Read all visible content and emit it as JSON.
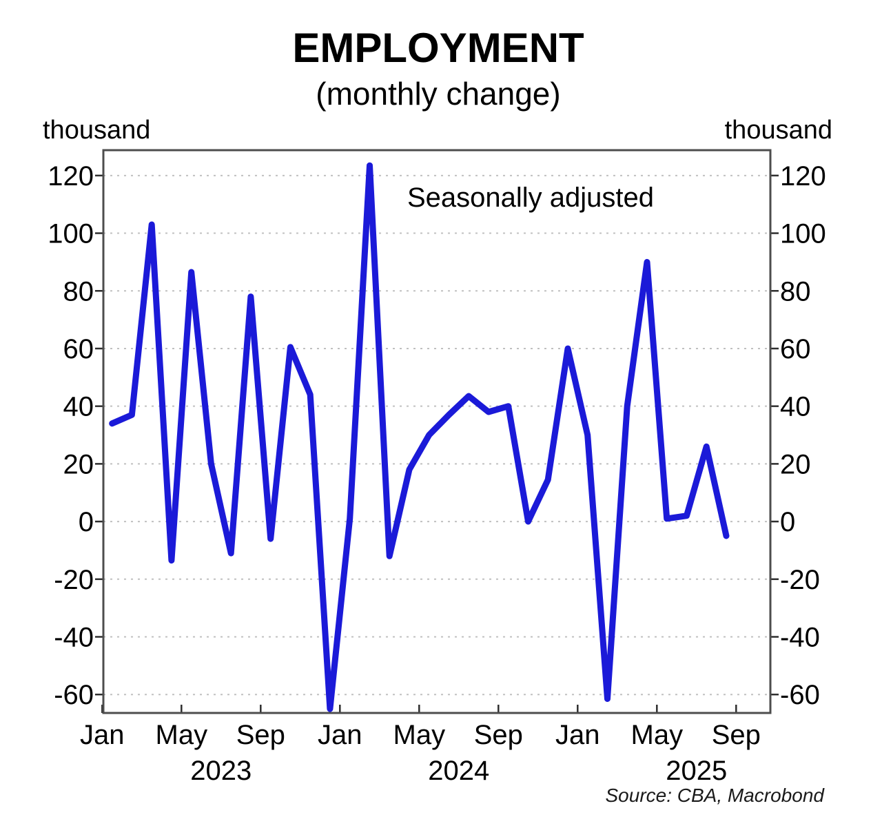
{
  "header": {
    "title": "EMPLOYMENT",
    "subtitle": "(monthly change)"
  },
  "axis": {
    "unit_left": "thousand",
    "unit_right": "thousand"
  },
  "annotation": {
    "label": "Seasonally adjusted"
  },
  "source": {
    "label": "Source: CBA, Macrobond"
  },
  "colors": {
    "line": "#1b1ad8",
    "annotation": "#1b1ad8",
    "grid": "#c0c0c0",
    "frame": "#4d4d4d",
    "tick": "#2e2e2e"
  },
  "chart_data": {
    "type": "line",
    "title": "EMPLOYMENT",
    "subtitle": "(monthly change)",
    "ylabel": "thousand",
    "ylim": [
      -66.4,
      128.8
    ],
    "y_ticks": [
      120,
      100,
      80,
      60,
      40,
      20,
      0,
      -20,
      -40,
      -60
    ],
    "grid": "horizontal-dotted",
    "legend_position": "none",
    "x_tick_labels": [
      "Jan",
      "May",
      "Sep",
      "Jan",
      "May",
      "Sep",
      "Jan",
      "May",
      "Sep"
    ],
    "year_labels": [
      "2023",
      "2024",
      "2025"
    ],
    "series": [
      {
        "name": "Seasonally adjusted",
        "color": "#1b1ad8",
        "x": [
          "2023-01",
          "2023-02",
          "2023-03",
          "2023-04",
          "2023-05",
          "2023-06",
          "2023-07",
          "2023-08",
          "2023-09",
          "2023-10",
          "2023-11",
          "2023-12",
          "2024-01",
          "2024-02",
          "2024-03",
          "2024-04",
          "2024-05",
          "2024-06",
          "2024-07",
          "2024-08",
          "2024-09",
          "2024-10",
          "2024-11",
          "2024-12",
          "2025-01",
          "2025-02",
          "2025-03",
          "2025-04",
          "2025-05",
          "2025-06",
          "2025-07",
          "2025-08"
        ],
        "values": [
          34,
          37,
          103,
          -13.5,
          86.5,
          20,
          -11,
          78,
          -6,
          60.5,
          44,
          -65,
          1,
          123.5,
          -12,
          18,
          30,
          37,
          43.5,
          38,
          40,
          0,
          14.5,
          60,
          30,
          -61.5,
          40,
          90,
          1,
          2,
          26,
          -5
        ]
      }
    ]
  }
}
